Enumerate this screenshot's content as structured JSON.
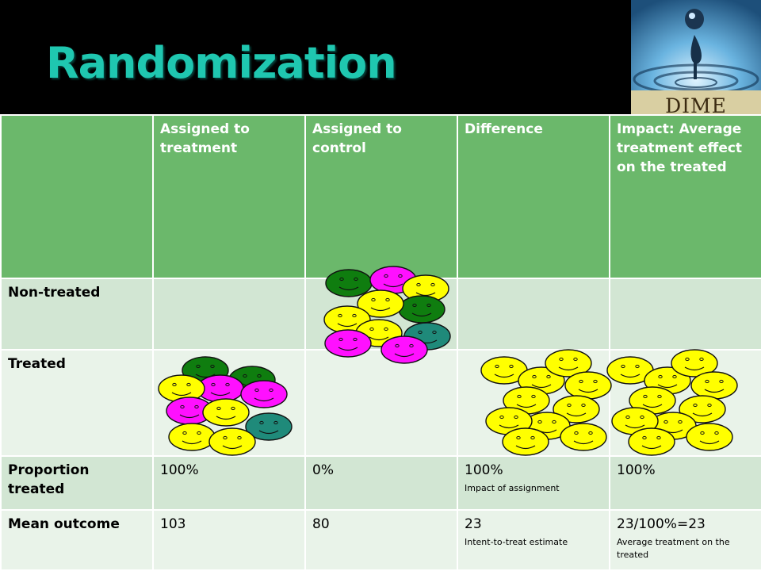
{
  "slide": {
    "title": "Randomization",
    "logo_text": "DIME"
  },
  "table": {
    "headers": [
      "",
      "Assigned to treatment",
      "Assigned to control",
      "Difference",
      "Impact: Average treatment effect on the treated"
    ],
    "rows": [
      {
        "label": "Non-treated",
        "cells": [
          "",
          "",
          "",
          ""
        ]
      },
      {
        "label": "Treated",
        "cells": [
          "",
          "",
          "",
          ""
        ]
      },
      {
        "label": "Proportion treated",
        "cells": [
          "100%",
          "0%",
          "100%",
          "100%"
        ],
        "notes": [
          "",
          "",
          "Impact of assignment",
          ""
        ]
      },
      {
        "label": "Mean outcome",
        "cells": [
          "103",
          "80",
          "23",
          "23/100%=23"
        ],
        "notes": [
          "",
          "",
          "Intent-to-treat estimate",
          "Average treatment on the treated"
        ]
      }
    ]
  },
  "colors": {
    "title": "#1fc7b0",
    "header_bg": "#6bb86b",
    "row_dark": "#d2e6d3",
    "row_light": "#e9f3e9",
    "face_green": "#0f7d0f",
    "face_magenta": "#ff10ff",
    "face_yellow": "#ffff00",
    "face_teal": "#1f8a7a"
  },
  "icons": [
    "smiley-face-icon",
    "water-drop-logo-icon"
  ]
}
